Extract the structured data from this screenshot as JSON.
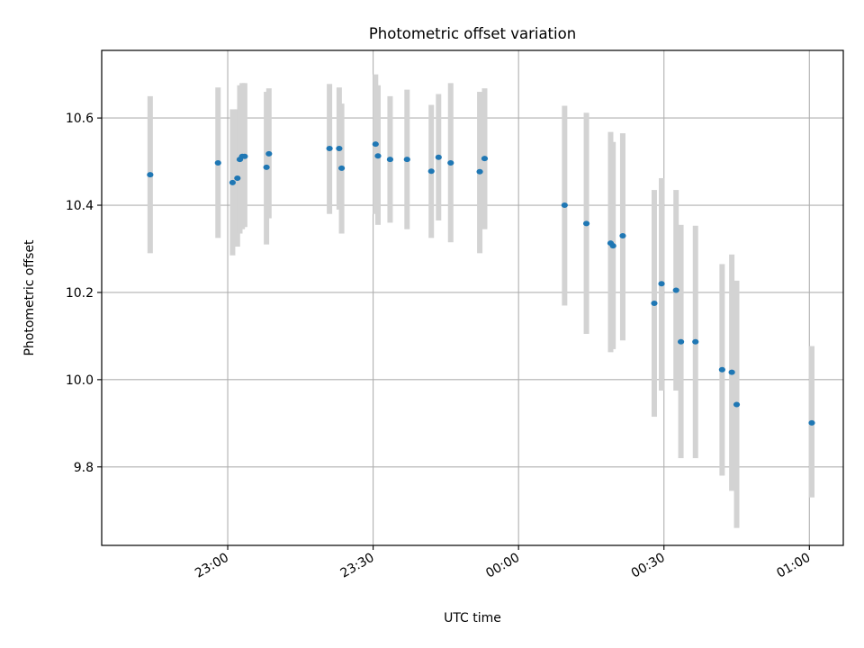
{
  "chart_data": {
    "type": "scatter",
    "title": "Photometric offset variation",
    "xlabel": "UTC time",
    "ylabel": "Photometric offset",
    "x_unit": "UTC time (HH:MM)",
    "x_ticks": [
      {
        "t": "23:00",
        "label": "23:00"
      },
      {
        "t": "23:30",
        "label": "23:30"
      },
      {
        "t": "00:00",
        "label": "00:00"
      },
      {
        "t": "00:30",
        "label": "00:30"
      },
      {
        "t": "01:00",
        "label": "01:00"
      }
    ],
    "xlim": [
      "22:34",
      "01:07"
    ],
    "y_ticks": [
      9.8,
      10.0,
      10.2,
      10.4,
      10.6
    ],
    "ylim": [
      9.62,
      10.755
    ],
    "grid": true,
    "colors": {
      "point": "#1f77b4",
      "errorbar": "#d3d3d3",
      "grid": "#b0b0b0"
    },
    "points": [
      {
        "t": "22:44",
        "y": 10.47,
        "lo": 10.29,
        "hi": 10.65
      },
      {
        "t": "22:58",
        "y": 10.497,
        "lo": 10.325,
        "hi": 10.67
      },
      {
        "t": "23:01",
        "y": 10.452,
        "lo": 10.285,
        "hi": 10.62
      },
      {
        "t": "23:02",
        "y": 10.462,
        "lo": 10.305,
        "hi": 10.62
      },
      {
        "t": "23:02.5",
        "y": 10.505,
        "lo": 10.335,
        "hi": 10.675
      },
      {
        "t": "23:03",
        "y": 10.512,
        "lo": 10.345,
        "hi": 10.68
      },
      {
        "t": "23:03.5",
        "y": 10.512,
        "lo": 10.35,
        "hi": 10.68
      },
      {
        "t": "23:08",
        "y": 10.487,
        "lo": 10.31,
        "hi": 10.66
      },
      {
        "t": "23:08.5",
        "y": 10.518,
        "lo": 10.37,
        "hi": 10.668
      },
      {
        "t": "23:21",
        "y": 10.53,
        "lo": 10.38,
        "hi": 10.678
      },
      {
        "t": "23:23",
        "y": 10.53,
        "lo": 10.39,
        "hi": 10.67
      },
      {
        "t": "23:23.5",
        "y": 10.485,
        "lo": 10.335,
        "hi": 10.633
      },
      {
        "t": "23:30.5",
        "y": 10.54,
        "lo": 10.38,
        "hi": 10.7
      },
      {
        "t": "23:31",
        "y": 10.513,
        "lo": 10.355,
        "hi": 10.675
      },
      {
        "t": "23:33.5",
        "y": 10.505,
        "lo": 10.36,
        "hi": 10.65
      },
      {
        "t": "23:37",
        "y": 10.505,
        "lo": 10.345,
        "hi": 10.665
      },
      {
        "t": "23:42",
        "y": 10.478,
        "lo": 10.325,
        "hi": 10.63
      },
      {
        "t": "23:43.5",
        "y": 10.51,
        "lo": 10.365,
        "hi": 10.655
      },
      {
        "t": "23:46",
        "y": 10.497,
        "lo": 10.315,
        "hi": 10.68
      },
      {
        "t": "23:52",
        "y": 10.477,
        "lo": 10.29,
        "hi": 10.66
      },
      {
        "t": "23:53",
        "y": 10.507,
        "lo": 10.345,
        "hi": 10.668
      },
      {
        "t": "00:09.5",
        "y": 10.4,
        "lo": 10.17,
        "hi": 10.628
      },
      {
        "t": "00:14",
        "y": 10.358,
        "lo": 10.105,
        "hi": 10.612
      },
      {
        "t": "00:19",
        "y": 10.313,
        "lo": 10.063,
        "hi": 10.568
      },
      {
        "t": "00:19.5",
        "y": 10.307,
        "lo": 10.07,
        "hi": 10.545
      },
      {
        "t": "00:21.5",
        "y": 10.33,
        "lo": 10.09,
        "hi": 10.565
      },
      {
        "t": "00:28",
        "y": 10.175,
        "lo": 9.915,
        "hi": 10.435
      },
      {
        "t": "00:29.5",
        "y": 10.22,
        "lo": 9.975,
        "hi": 10.462
      },
      {
        "t": "00:32.5",
        "y": 10.205,
        "lo": 9.975,
        "hi": 10.435
      },
      {
        "t": "00:33.5",
        "y": 10.087,
        "lo": 9.82,
        "hi": 10.355
      },
      {
        "t": "00:36.5",
        "y": 10.087,
        "lo": 9.82,
        "hi": 10.353
      },
      {
        "t": "00:42",
        "y": 10.023,
        "lo": 9.78,
        "hi": 10.265
      },
      {
        "t": "00:44",
        "y": 10.017,
        "lo": 9.745,
        "hi": 10.287
      },
      {
        "t": "00:45",
        "y": 9.943,
        "lo": 9.66,
        "hi": 10.227
      },
      {
        "t": "01:00.5",
        "y": 9.901,
        "lo": 9.73,
        "hi": 10.077
      }
    ]
  }
}
